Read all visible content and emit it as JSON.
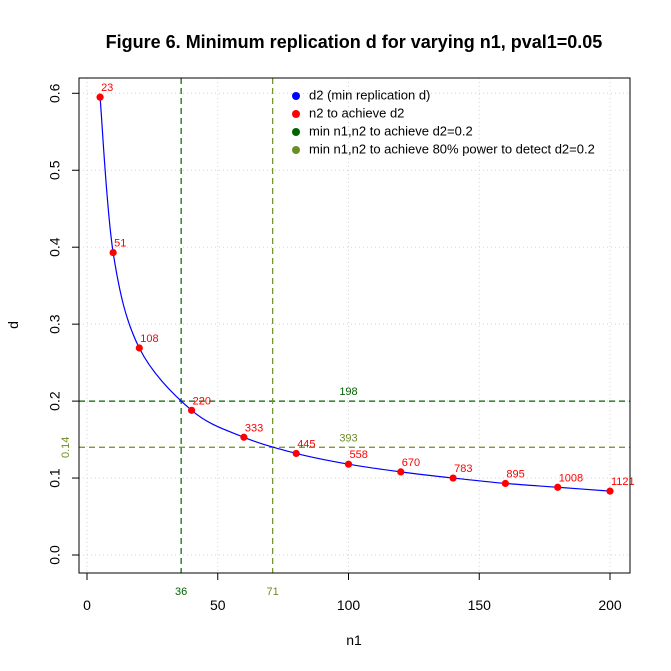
{
  "chart_data": {
    "type": "line",
    "title": "Figure 6. Minimum replication d for varying n1, pval1=0.05",
    "xlabel": "n1",
    "ylabel": "d",
    "xlim": [
      0,
      207
    ],
    "ylim": [
      -0.02,
      0.63
    ],
    "x_ticks": [
      0,
      50,
      100,
      150,
      200
    ],
    "y_ticks": [
      0.0,
      0.1,
      0.2,
      0.3,
      0.4,
      0.5,
      0.6
    ],
    "grid": true,
    "legend_position": "top-right",
    "legend": [
      {
        "label": "d2 (min replication d)",
        "color": "#0000ff"
      },
      {
        "label": "n2 to achieve d2",
        "color": "#ff0000"
      },
      {
        "label": "min n1,n2 to achieve d2=0.2",
        "color": "#006400"
      },
      {
        "label": "min n1,n2 to achieve 80% power to detect d2=0.2",
        "color": "#6b8e23"
      }
    ],
    "curve_color": "#0000ff",
    "point_color": "#ff0000",
    "points": [
      {
        "n1": 5,
        "d": 0.595,
        "n2": "23"
      },
      {
        "n1": 10,
        "d": 0.393,
        "n2": "51"
      },
      {
        "n1": 20,
        "d": 0.269,
        "n2": "108"
      },
      {
        "n1": 40,
        "d": 0.188,
        "n2": "220"
      },
      {
        "n1": 60,
        "d": 0.153,
        "n2": "333"
      },
      {
        "n1": 80,
        "d": 0.132,
        "n2": "445"
      },
      {
        "n1": 100,
        "d": 0.118,
        "n2": "558"
      },
      {
        "n1": 120,
        "d": 0.108,
        "n2": "670"
      },
      {
        "n1": 140,
        "d": 0.1,
        "n2": "783"
      },
      {
        "n1": 160,
        "d": 0.093,
        "n2": "895"
      },
      {
        "n1": 180,
        "d": 0.088,
        "n2": "1008"
      },
      {
        "n1": 200,
        "d": 0.083,
        "n2": "1121"
      }
    ],
    "reference_lines": {
      "d2_line": {
        "y": 0.2,
        "color": "#006400",
        "label": "198"
      },
      "power_line": {
        "y": 0.14,
        "color": "#6b8e23",
        "label": "393",
        "y_label": "0.14"
      },
      "vline_d2": {
        "x": 36,
        "color": "#006400",
        "label": "36"
      },
      "vline_power": {
        "x": 71,
        "color": "#6b8e23",
        "label": "71"
      }
    }
  }
}
